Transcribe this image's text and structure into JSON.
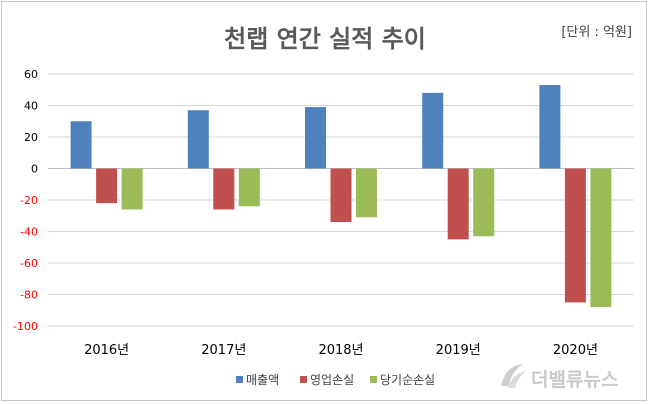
{
  "chart_data": {
    "type": "bar",
    "title": "천랩 연간 실적 추이",
    "unit_label": "[단위 : 억원]",
    "categories": [
      "2016년",
      "2017년",
      "2018년",
      "2019년",
      "2020년"
    ],
    "series": [
      {
        "name": "매출액",
        "color": "#4f81bd",
        "values": [
          30,
          37,
          39,
          48,
          53
        ]
      },
      {
        "name": "영업손실",
        "color": "#c0504d",
        "values": [
          -22,
          -26,
          -34,
          -45,
          -85
        ]
      },
      {
        "name": "당기순손실",
        "color": "#9bbb59",
        "values": [
          -26,
          -24,
          -31,
          -43,
          -88
        ]
      }
    ],
    "ylim": [
      -100,
      60
    ],
    "yticks": [
      60,
      40,
      20,
      0,
      -20,
      -40,
      -60,
      -80,
      -100
    ],
    "grid": true,
    "legend": "bottom",
    "positive_tick_color": "#000000",
    "negative_tick_color": "#ff0000"
  },
  "watermark": {
    "text": "더밸류뉴스",
    "icon": "swoosh-logo-icon"
  }
}
